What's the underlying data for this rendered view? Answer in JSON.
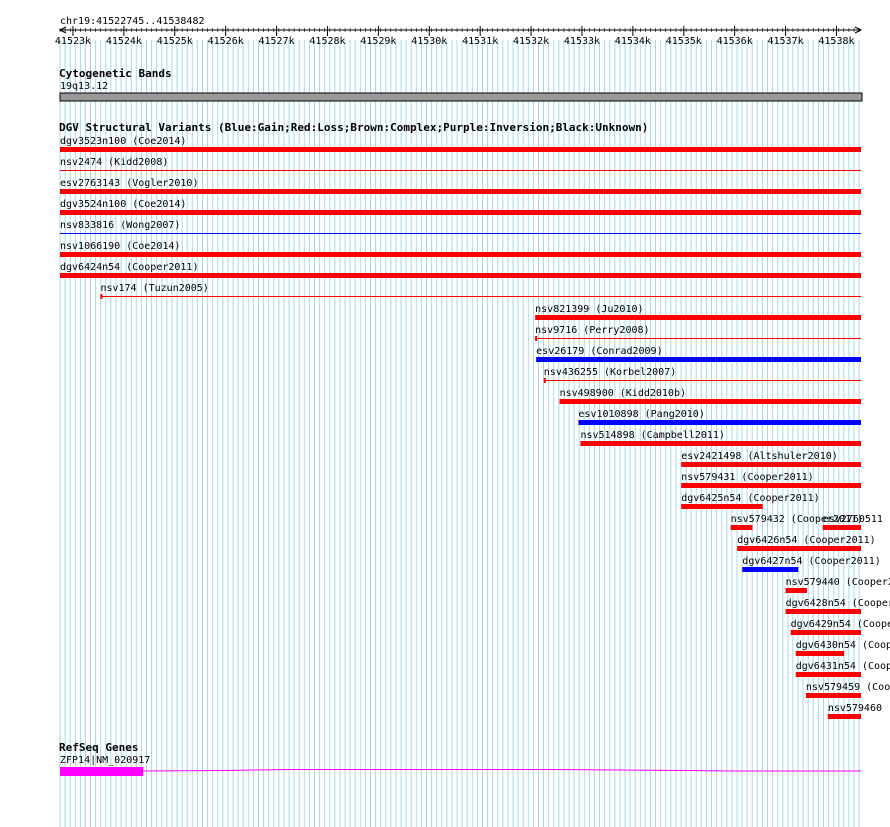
{
  "browser": {
    "region": "chr19:41522745..41538482",
    "ruler": {
      "start": 41522745,
      "end": 41538482,
      "ticks": [
        "41523k",
        "41524k",
        "41525k",
        "41526k",
        "41527k",
        "41528k",
        "41529k",
        "41530k",
        "41531k",
        "41532k",
        "41533k",
        "41534k",
        "41535k",
        "41536k",
        "41537k",
        "41538k"
      ]
    },
    "cytoband": {
      "title": "Cytogenetic Bands",
      "band": "19q13.12",
      "color": "#999999"
    },
    "dgv": {
      "title": "DGV Structural Variants (Blue:Gain;Red:Loss;Brown:Complex;Purple:Inversion;Black:Unknown)",
      "colors": {
        "loss": "#ff0000",
        "gain": "#0000ff"
      },
      "features": [
        {
          "label": "dgv3523n100 (Coe2014)",
          "start": 41522745,
          "end": 41538482,
          "type": "loss",
          "thin": false
        },
        {
          "label": "nsv2474 (Kidd2008)",
          "start": 41522745,
          "end": 41538482,
          "type": "loss",
          "thin": true
        },
        {
          "label": "esv2763143 (Vogler2010)",
          "start": 41522745,
          "end": 41538482,
          "type": "loss",
          "thin": false
        },
        {
          "label": "dgv3524n100 (Coe2014)",
          "start": 41522745,
          "end": 41538482,
          "type": "loss",
          "thin": false
        },
        {
          "label": "nsv833816 (Wong2007)",
          "start": 41522745,
          "end": 41538482,
          "type": "gain",
          "thin": true
        },
        {
          "label": "nsv1066190 (Coe2014)",
          "start": 41522745,
          "end": 41538482,
          "type": "loss",
          "thin": false
        },
        {
          "label": "dgv6424n54 (Cooper2011)",
          "start": 41522745,
          "end": 41538482,
          "type": "loss",
          "thin": false
        },
        {
          "label": "nsv174 (Tuzun2005)",
          "start": 41523540,
          "end": 41538482,
          "type": "loss",
          "thin": true
        },
        {
          "label": "nsv821399 (Ju2010)",
          "start": 41532080,
          "end": 41538482,
          "type": "loss",
          "thin": false
        },
        {
          "label": "nsv9716 (Perry2008)",
          "start": 41532080,
          "end": 41538482,
          "type": "loss",
          "thin": true
        },
        {
          "label": "esv26179 (Conrad2009)",
          "start": 41532100,
          "end": 41538482,
          "type": "gain",
          "thin": false
        },
        {
          "label": "nsv436255 (Korbel2007)",
          "start": 41532250,
          "end": 41538482,
          "type": "loss",
          "thin": true
        },
        {
          "label": "nsv498900 (Kidd2010b)",
          "start": 41532560,
          "end": 41538482,
          "type": "loss",
          "thin": false
        },
        {
          "label": "esv1010898 (Pang2010)",
          "start": 41532930,
          "end": 41538482,
          "type": "gain",
          "thin": false
        },
        {
          "label": "nsv514898 (Campbell2011)",
          "start": 41532970,
          "end": 41538482,
          "type": "loss",
          "thin": false
        },
        {
          "label": "esv2421498 (Altshuler2010)",
          "start": 41534950,
          "end": 41538482,
          "type": "loss",
          "thin": false
        },
        {
          "label": "nsv579431 (Cooper2011)",
          "start": 41534950,
          "end": 41538482,
          "type": "loss",
          "thin": false
        },
        {
          "label": "dgv6425n54 (Cooper2011)",
          "start": 41534950,
          "end": 41536550,
          "type": "loss",
          "thin": false
        },
        {
          "label": "esv2760511 (",
          "start": 41537730,
          "end": 41538482,
          "type": "loss",
          "thin": false
        },
        {
          "label": "nsv579432 (Cooper2011)",
          "start": 41535920,
          "end": 41536350,
          "type": "loss",
          "thin": false
        },
        {
          "label": "dgv6426n54 (Cooper2011)",
          "start": 41536050,
          "end": 41538482,
          "type": "loss",
          "thin": false
        },
        {
          "label": "dgv6427n54 (Cooper2011)",
          "start": 41536150,
          "end": 41537250,
          "type": "gain",
          "thin": false
        },
        {
          "label": "nsv579440 (Cooper2",
          "start": 41537000,
          "end": 41537420,
          "type": "loss",
          "thin": false
        },
        {
          "label": "dgv6428n54 (Cooper",
          "start": 41537000,
          "end": 41538482,
          "type": "loss",
          "thin": false
        },
        {
          "label": "dgv6429n54 (Coope",
          "start": 41537100,
          "end": 41538482,
          "type": "loss",
          "thin": false
        },
        {
          "label": "dgv6430n54 (Coop",
          "start": 41537200,
          "end": 41538150,
          "type": "loss",
          "thin": false
        },
        {
          "label": "dgv6431n54 (Coop",
          "start": 41537200,
          "end": 41538482,
          "type": "loss",
          "thin": false
        },
        {
          "label": "nsv579459 (Coop",
          "start": 41537400,
          "end": 41538482,
          "type": "loss",
          "thin": false
        },
        {
          "label": "nsv579460 (",
          "start": 41537830,
          "end": 41538482,
          "type": "loss",
          "thin": false
        }
      ]
    },
    "refseq": {
      "title": "RefSeq Genes",
      "gene_label": "ZFP14|NM_020917",
      "color": "#ff00ff",
      "exon": {
        "start": 41522745,
        "end": 41524380
      },
      "intron": {
        "start": 41524380,
        "end": 41538482
      }
    }
  }
}
